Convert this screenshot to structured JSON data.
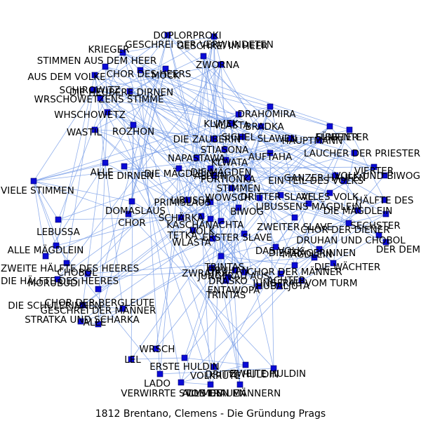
{
  "caption": "1812  Brentano,  Clemens  -  Die  Gründung  Prags",
  "colors": {
    "edge": "#6d95e6",
    "node": "#0a0ad6",
    "text": "#000000"
  },
  "nodes": [
    {
      "label": "DOPLORPROKI"
    },
    {
      "label": "GESCHREI IM HEER"
    },
    {
      "label": "KRIEGER"
    },
    {
      "label": "STIMMEN AUS DEM HEER"
    },
    {
      "label": "GESCHREI DER VERWUNDETEN"
    },
    {
      "label": "CHOR DES HEERS"
    },
    {
      "label": "ZWORNA"
    },
    {
      "label": "AUS DEM VOLKE"
    },
    {
      "label": "MOCK"
    },
    {
      "label": "SCHIROWITZ"
    },
    {
      "label": "DIE HEUBERE DIRNEN"
    },
    {
      "label": "WRSCHOWETZENS STIMME"
    },
    {
      "label": "WHSCHOWETZ"
    },
    {
      "label": "DRAHOMIRA"
    },
    {
      "label": "VLASTA"
    },
    {
      "label": "KLIMEK"
    },
    {
      "label": "BRADKA"
    },
    {
      "label": "WASTIL"
    },
    {
      "label": "ROZHON"
    },
    {
      "label": "FÜNFTER"
    },
    {
      "label": "SIEBENTER"
    },
    {
      "label": "DIE ZAUBERIN"
    },
    {
      "label": "SICHEL"
    },
    {
      "label": "SLAWEN"
    },
    {
      "label": "HAUPTMANN"
    },
    {
      "label": "STIASONA"
    },
    {
      "label": "AUFTAHA"
    },
    {
      "label": "LAUCHER DER PRIESTER"
    },
    {
      "label": "KLWATA"
    },
    {
      "label": "DIE MÄGDEN"
    },
    {
      "label": "NAPASTAWA"
    },
    {
      "label": "VIERTER"
    },
    {
      "label": "ALLE"
    },
    {
      "label": "DIE MÄGDLEIN"
    },
    {
      "label": "DIE DIRNEN"
    },
    {
      "label": "ALLEIN"
    },
    {
      "label": "PORTIONKA"
    },
    {
      "label": "GANZER HAUFEN"
    },
    {
      "label": "EIN TEIL DES VOLKS"
    },
    {
      "label": "VOLK UND BIWOG"
    },
    {
      "label": "VIELE STIMMEN"
    },
    {
      "label": "STIMMEN"
    },
    {
      "label": "DRITTER SLAVE"
    },
    {
      "label": "ALLES VOLK"
    },
    {
      "label": "HÄLFTE DES"
    },
    {
      "label": "DOMASLAUS"
    },
    {
      "label": "LIBUSSA"
    },
    {
      "label": "PRIMISLAUS"
    },
    {
      "label": "WOWSCH"
    },
    {
      "label": "BIWOG"
    },
    {
      "label": "LIBUSSENS MÄGDLEIN"
    },
    {
      "label": "DIE MÄGDLEIN"
    },
    {
      "label": "CHOR"
    },
    {
      "label": "KASCHA"
    },
    {
      "label": "VOLK"
    },
    {
      "label": "NACHTA"
    },
    {
      "label": "SCHÄRKA"
    },
    {
      "label": "ZWEITER SLAVE"
    },
    {
      "label": "CHOR DER DIENER"
    },
    {
      "label": "SECHSTER"
    },
    {
      "label": "LEBUSSA"
    },
    {
      "label": "TETKA"
    },
    {
      "label": "DRUHAN UND CHOBOL"
    },
    {
      "label": "WLASTA"
    },
    {
      "label": "ERSTER SLAVE"
    },
    {
      "label": "DAS VOLK"
    },
    {
      "label": "ALLE MÄGDLEIN"
    },
    {
      "label": "DIE TRÄGERINNEN"
    },
    {
      "label": "DER DEM"
    },
    {
      "label": "ZWEITE HÄLFTE DES HEERES"
    },
    {
      "label": "TRINTAS"
    },
    {
      "label": "MÄGDLEIN"
    },
    {
      "label": "DIE WÄCHTER"
    },
    {
      "label": "CHOBOL"
    },
    {
      "label": "CHOR DER MÄNNER"
    },
    {
      "label": "DIE HÄLFTE DES HEERES"
    },
    {
      "label": "ZWRATKA"
    },
    {
      "label": "DRUHAN"
    },
    {
      "label": "JUNGFRAU AUS"
    },
    {
      "label": "ACHTER"
    },
    {
      "label": "MORUBUDI"
    },
    {
      "label": "DRASKO"
    },
    {
      "label": "JUNGFRAU VOM TURM"
    },
    {
      "label": "TRINTAS"
    },
    {
      "label": "HUBALJUTA"
    },
    {
      "label": "ENTAWOPA"
    },
    {
      "label": "CHOR DER BERGLEUTE"
    },
    {
      "label": "DIE SCHULERINNEN"
    },
    {
      "label": "GESCHREI DER MÄNNER"
    },
    {
      "label": "ALLE"
    },
    {
      "label": "STRATKA UND SCHARKA"
    },
    {
      "label": "WRSCH"
    },
    {
      "label": "LEL"
    },
    {
      "label": "ERSTE HULDIN"
    },
    {
      "label": "LADO"
    },
    {
      "label": "VOLKRUTE"
    },
    {
      "label": "DRITTE HULDIN"
    },
    {
      "label": "ZWEITE HULDIN"
    },
    {
      "label": "VERWIRRTE STIMMEN"
    },
    {
      "label": "ALLE FRAUEN"
    },
    {
      "label": "VON DEN MÄNNERN"
    }
  ],
  "edges": [
    [
      0,
      5
    ],
    [
      0,
      9
    ],
    [
      0,
      14
    ],
    [
      0,
      23
    ],
    [
      0,
      47
    ],
    [
      0,
      52
    ],
    [
      0,
      63
    ],
    [
      0,
      86
    ],
    [
      1,
      2
    ],
    [
      1,
      6
    ],
    [
      1,
      11
    ],
    [
      1,
      21
    ],
    [
      1,
      33
    ],
    [
      1,
      46
    ],
    [
      1,
      70
    ],
    [
      1,
      91
    ],
    [
      2,
      3
    ],
    [
      2,
      8
    ],
    [
      2,
      15
    ],
    [
      2,
      28
    ],
    [
      2,
      44
    ],
    [
      2,
      60
    ],
    [
      2,
      78
    ],
    [
      2,
      95
    ],
    [
      3,
      7
    ],
    [
      3,
      12
    ],
    [
      3,
      19
    ],
    [
      3,
      37
    ],
    [
      3,
      54
    ],
    [
      3,
      72
    ],
    [
      3,
      99
    ],
    [
      4,
      6
    ],
    [
      4,
      10
    ],
    [
      4,
      16
    ],
    [
      4,
      30
    ],
    [
      4,
      49
    ],
    [
      4,
      65
    ],
    [
      4,
      83
    ],
    [
      4,
      97
    ],
    [
      5,
      8
    ],
    [
      5,
      13
    ],
    [
      5,
      22
    ],
    [
      5,
      41
    ],
    [
      5,
      58
    ],
    [
      5,
      76
    ],
    [
      5,
      94
    ],
    [
      6,
      9
    ],
    [
      6,
      17
    ],
    [
      6,
      26
    ],
    [
      6,
      46
    ],
    [
      6,
      61
    ],
    [
      6,
      80
    ],
    [
      6,
      100
    ],
    [
      7,
      11
    ],
    [
      7,
      18
    ],
    [
      7,
      31
    ],
    [
      7,
      50
    ],
    [
      7,
      66
    ],
    [
      7,
      88
    ],
    [
      8,
      12
    ],
    [
      8,
      20
    ],
    [
      8,
      35
    ],
    [
      8,
      52
    ],
    [
      8,
      69
    ],
    [
      8,
      90
    ],
    [
      9,
      14
    ],
    [
      9,
      24
    ],
    [
      9,
      40
    ],
    [
      9,
      57
    ],
    [
      9,
      73
    ],
    [
      9,
      96
    ],
    [
      10,
      15
    ],
    [
      10,
      27
    ],
    [
      10,
      43
    ],
    [
      10,
      62
    ],
    [
      10,
      79
    ],
    [
      10,
      98
    ],
    [
      11,
      16
    ],
    [
      11,
      29
    ],
    [
      11,
      47
    ],
    [
      11,
      64
    ],
    [
      11,
      85
    ],
    [
      12,
      17
    ],
    [
      12,
      32
    ],
    [
      12,
      51
    ],
    [
      12,
      68
    ],
    [
      12,
      89
    ],
    [
      13,
      19
    ],
    [
      13,
      25
    ],
    [
      13,
      36
    ],
    [
      13,
      55
    ],
    [
      13,
      71
    ],
    [
      13,
      93
    ],
    [
      14,
      21
    ],
    [
      14,
      34
    ],
    [
      14,
      53
    ],
    [
      14,
      75
    ],
    [
      14,
      101
    ],
    [
      15,
      22
    ],
    [
      15,
      38
    ],
    [
      15,
      59
    ],
    [
      15,
      77
    ],
    [
      16,
      23
    ],
    [
      16,
      39
    ],
    [
      16,
      56
    ],
    [
      16,
      81
    ],
    [
      17,
      24
    ],
    [
      17,
      42
    ],
    [
      17,
      63
    ],
    [
      17,
      84
    ],
    [
      18,
      26
    ],
    [
      18,
      45
    ],
    [
      18,
      67
    ],
    [
      18,
      92
    ],
    [
      19,
      27
    ],
    [
      19,
      48
    ],
    [
      19,
      70
    ],
    [
      19,
      87
    ],
    [
      20,
      28
    ],
    [
      20,
      44
    ],
    [
      20,
      74
    ],
    [
      20,
      99
    ],
    [
      21,
      30
    ],
    [
      21,
      54
    ],
    [
      21,
      78
    ],
    [
      22,
      31
    ],
    [
      22,
      57
    ],
    [
      22,
      82
    ],
    [
      23,
      33
    ],
    [
      23,
      60
    ],
    [
      23,
      86
    ],
    [
      24,
      35
    ],
    [
      24,
      61
    ],
    [
      24,
      91
    ],
    [
      25,
      37
    ],
    [
      25,
      65
    ],
    [
      25,
      95
    ],
    [
      26,
      40
    ],
    [
      26,
      69
    ],
    [
      26,
      97
    ],
    [
      27,
      41
    ],
    [
      27,
      72
    ],
    [
      28,
      43
    ],
    [
      28,
      76
    ],
    [
      29,
      46
    ],
    [
      29,
      80
    ],
    [
      30,
      49
    ],
    [
      30,
      83
    ],
    [
      31,
      50
    ],
    [
      31,
      88
    ],
    [
      32,
      53
    ],
    [
      32,
      90
    ],
    [
      33,
      56
    ],
    [
      33,
      94
    ],
    [
      34,
      58
    ],
    [
      34,
      96
    ],
    [
      35,
      62
    ],
    [
      35,
      100
    ],
    [
      36,
      64
    ],
    [
      36,
      98
    ],
    [
      37,
      66
    ],
    [
      38,
      68
    ],
    [
      38,
      101
    ],
    [
      39,
      71
    ],
    [
      40,
      73
    ],
    [
      41,
      75
    ],
    [
      42,
      77
    ],
    [
      43,
      79
    ],
    [
      44,
      81
    ],
    [
      45,
      84
    ],
    [
      46,
      85
    ],
    [
      47,
      87
    ],
    [
      48,
      89
    ],
    [
      49,
      92
    ],
    [
      50,
      93
    ],
    [
      51,
      95
    ],
    [
      52,
      97
    ],
    [
      53,
      99
    ],
    [
      54,
      100
    ],
    [
      55,
      101
    ],
    [
      56,
      60
    ],
    [
      57,
      65
    ],
    [
      58,
      70
    ],
    [
      59,
      74
    ],
    [
      61,
      78
    ],
    [
      62,
      82
    ],
    [
      63,
      86
    ],
    [
      64,
      90
    ],
    [
      66,
      94
    ],
    [
      67,
      98
    ],
    [
      32,
      40
    ],
    [
      40,
      45
    ],
    [
      40,
      60
    ],
    [
      40,
      66
    ],
    [
      40,
      69
    ],
    [
      40,
      52
    ],
    [
      40,
      14
    ],
    [
      40,
      21
    ],
    [
      41,
      43
    ],
    [
      41,
      50
    ],
    [
      41,
      57
    ],
    [
      47,
      49
    ],
    [
      47,
      53
    ],
    [
      47,
      63
    ],
    [
      54,
      55
    ],
    [
      54,
      61
    ],
    [
      63,
      64
    ],
    [
      64,
      65
    ],
    [
      70,
      74
    ],
    [
      70,
      76
    ],
    [
      74,
      79
    ],
    [
      79,
      81
    ],
    [
      82,
      84
    ],
    [
      84,
      85
    ],
    [
      87,
      88
    ],
    [
      88,
      89
    ],
    [
      89,
      90
    ],
    [
      92,
      93
    ],
    [
      93,
      96
    ],
    [
      94,
      97
    ],
    [
      96,
      98
    ],
    [
      98,
      99
    ],
    [
      99,
      101
    ],
    [
      100,
      101
    ],
    [
      13,
      14
    ],
    [
      15,
      16
    ],
    [
      21,
      23
    ],
    [
      24,
      26
    ],
    [
      29,
      31
    ],
    [
      36,
      37
    ],
    [
      37,
      38
    ],
    [
      42,
      43
    ],
    [
      50,
      58
    ],
    [
      58,
      59
    ],
    [
      62,
      68
    ],
    [
      67,
      72
    ],
    [
      71,
      75
    ],
    [
      77,
      80
    ],
    [
      83,
      85
    ]
  ]
}
